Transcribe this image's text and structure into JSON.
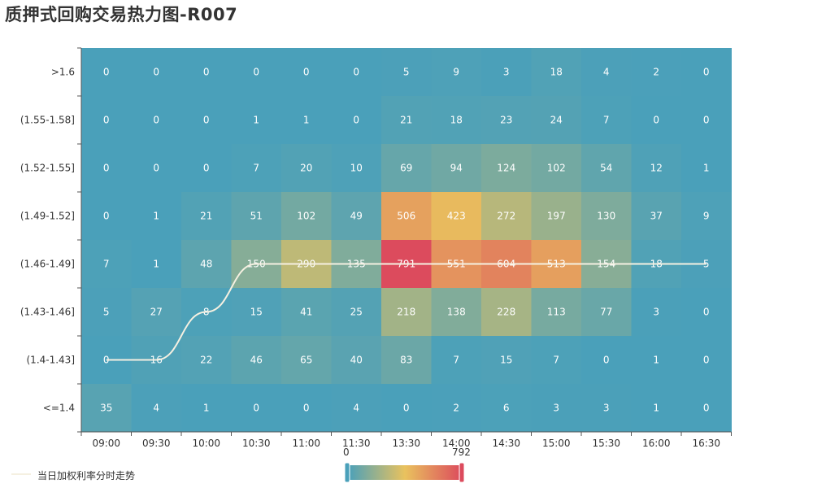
{
  "title": "质押式回购交易热力图-R007",
  "legend_label": "当日加权利率分时走势",
  "visual_map": {
    "min_label": "0",
    "max_label": "792",
    "colors": [
      "#4aa0ba",
      "#e9c25e",
      "#dc4b5d"
    ]
  },
  "colors": {
    "line": "#f5f0e1",
    "axis": "#555555",
    "label": "#ffffff"
  },
  "chart_data": {
    "type": "heatmap",
    "title": "质押式回购交易热力图-R007",
    "x": [
      "09:00",
      "09:30",
      "10:00",
      "10:30",
      "11:00",
      "11:30",
      "13:30",
      "14:00",
      "14:30",
      "15:00",
      "15:30",
      "16:00",
      "16:30"
    ],
    "y": [
      ">1.6",
      "(1.55-1.58]",
      "(1.52-1.55]",
      "(1.49-1.52]",
      "(1.46-1.49]",
      "(1.43-1.46]",
      "(1.4-1.43]",
      "<=1.4"
    ],
    "vmin": 0,
    "vmax": 792,
    "values": [
      [
        0,
        0,
        0,
        0,
        0,
        0,
        5,
        9,
        3,
        18,
        4,
        2,
        0
      ],
      [
        0,
        0,
        0,
        1,
        1,
        0,
        21,
        18,
        23,
        24,
        7,
        0,
        0
      ],
      [
        0,
        0,
        0,
        7,
        20,
        10,
        69,
        94,
        124,
        102,
        54,
        12,
        1
      ],
      [
        0,
        1,
        21,
        51,
        102,
        49,
        506,
        423,
        272,
        197,
        130,
        37,
        9
      ],
      [
        7,
        1,
        48,
        150,
        290,
        135,
        791,
        551,
        604,
        513,
        154,
        18,
        5
      ],
      [
        5,
        27,
        8,
        15,
        41,
        25,
        218,
        138,
        228,
        113,
        77,
        3,
        0
      ],
      [
        0,
        16,
        22,
        46,
        65,
        40,
        83,
        7,
        15,
        7,
        0,
        1,
        0
      ],
      [
        35,
        4,
        1,
        0,
        0,
        4,
        0,
        2,
        6,
        3,
        3,
        1,
        0
      ]
    ],
    "line": {
      "name": "当日加权利率分时走势",
      "y": [
        "(1.4-1.43]",
        "(1.4-1.43]",
        "(1.43-1.46]",
        "(1.46-1.49]",
        "(1.46-1.49]",
        "(1.46-1.49]",
        "(1.46-1.49]",
        "(1.46-1.49]",
        "(1.46-1.49]",
        "(1.46-1.49]",
        "(1.46-1.49]",
        "(1.46-1.49]",
        "(1.46-1.49]"
      ]
    }
  }
}
